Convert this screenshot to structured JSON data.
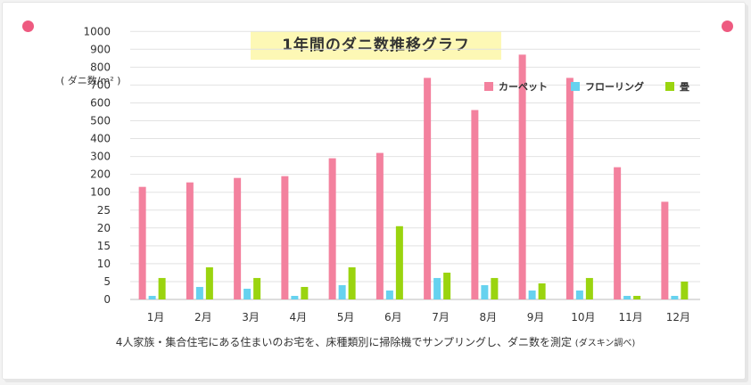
{
  "title": "1年間のダニ数推移グラフ",
  "footnote": {
    "main": "4人家族・集合住宅にある住まいのお宅を、床種類別に掃除機でサンプリングし、ダニ数を測定",
    "source": "(ダスキン調べ)"
  },
  "chart_data": {
    "type": "bar",
    "title": "1年間のダニ数推移グラフ",
    "ylabel": "( ダニ数/m² )",
    "xlabel": "",
    "y_ticks": [
      "0",
      "5",
      "10",
      "15",
      "20",
      "25",
      "100",
      "200",
      "300",
      "400",
      "500",
      "600",
      "700",
      "800",
      "900",
      "1000"
    ],
    "y_scale": "piecewise: 0–25 linear, 25–100 compressed, 100–1000 linear",
    "ylim": [
      0,
      1000
    ],
    "grid": true,
    "legend_position": "top-right",
    "categories": [
      "1月",
      "2月",
      "3月",
      "4月",
      "5月",
      "6月",
      "7月",
      "8月",
      "9月",
      "10月",
      "11月",
      "12月"
    ],
    "series": [
      {
        "name": "カーペット",
        "color": "#f3819e",
        "values": [
          130,
          155,
          180,
          190,
          290,
          320,
          740,
          560,
          870,
          740,
          240,
          60
        ]
      },
      {
        "name": "フローリング",
        "color": "#66d2ef",
        "values": [
          1,
          3.5,
          3,
          1,
          4,
          2.5,
          6,
          4,
          2.5,
          2.5,
          1,
          1
        ]
      },
      {
        "name": "畳",
        "color": "#9ad40f",
        "values": [
          6,
          9,
          6,
          3.5,
          9,
          20.5,
          7.5,
          6,
          4.5,
          6,
          1,
          5
        ]
      }
    ]
  }
}
